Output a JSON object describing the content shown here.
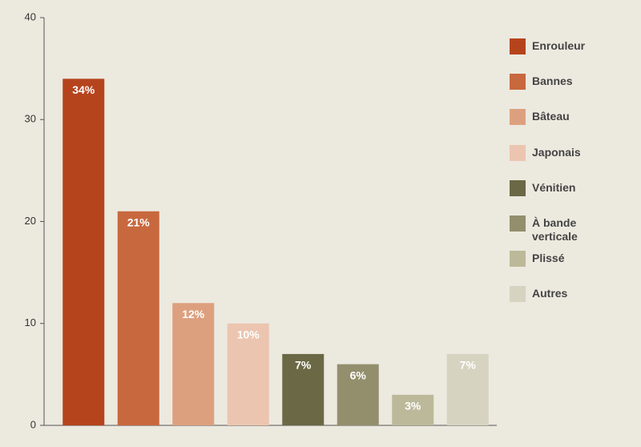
{
  "chart_data": {
    "type": "bar",
    "categories": [
      "Enrouleur",
      "Bannes",
      "Bâteau",
      "Japonais",
      "Vénitien",
      "À bande verticale",
      "Plissé",
      "Autres"
    ],
    "values": [
      34,
      21,
      12,
      10,
      7,
      6,
      3,
      7
    ],
    "value_labels": [
      "34%",
      "21%",
      "12%",
      "10%",
      "7%",
      "6%",
      "3%",
      "7%"
    ],
    "colors": [
      "#b5441d",
      "#c8683e",
      "#dda07e",
      "#ecc5b0",
      "#6b6845",
      "#938f6d",
      "#bcb99a",
      "#d6d3c0"
    ],
    "ylim": [
      0,
      40
    ],
    "yticks": [
      0,
      10,
      20,
      30,
      40
    ],
    "legend": "right"
  }
}
